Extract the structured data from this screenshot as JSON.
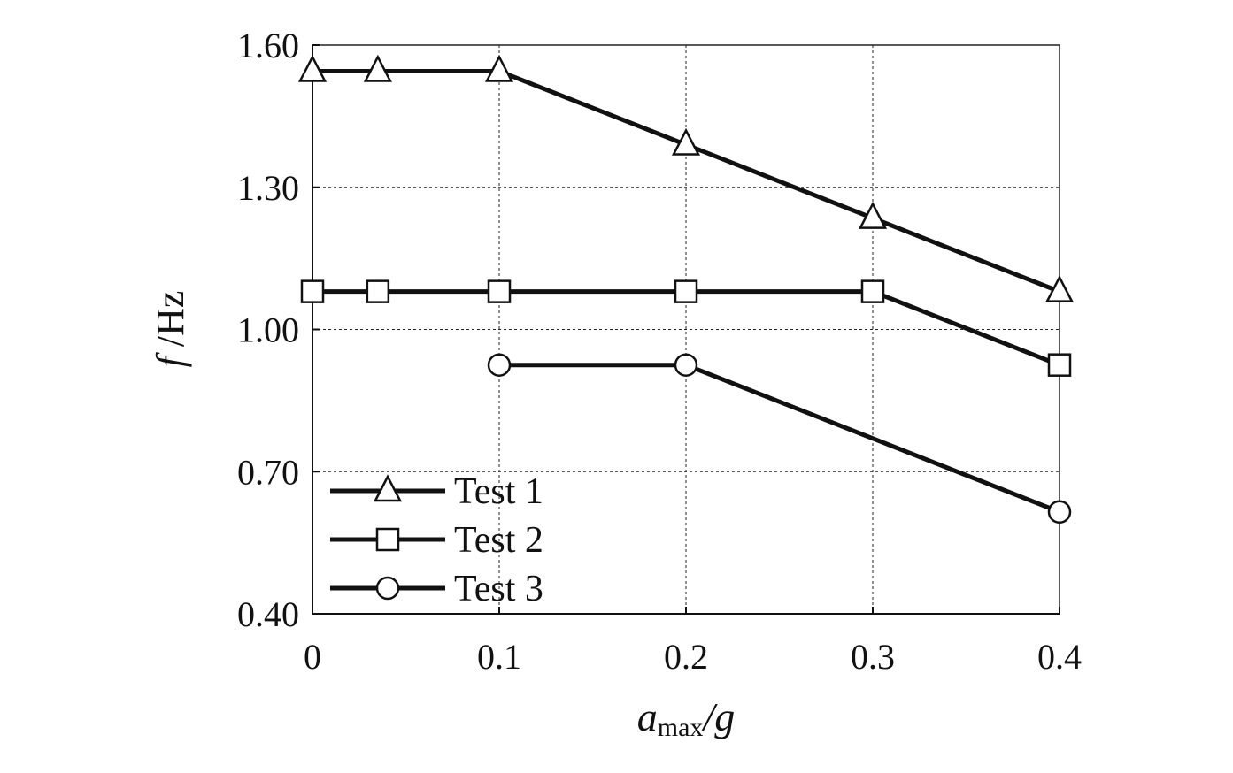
{
  "chart_data": {
    "type": "line",
    "title": "",
    "xlabel": {
      "main": "a",
      "sub": "max",
      "rest": "/g"
    },
    "ylabel": {
      "main": "f",
      "rest": " /Hz"
    },
    "xlim": [
      0,
      0.4
    ],
    "ylim": [
      0.4,
      1.6
    ],
    "x_ticks": [
      0,
      0.1,
      0.2,
      0.3,
      0.4
    ],
    "x_tick_labels": [
      "0",
      "0.1",
      "0.2",
      "0.3",
      "0.4"
    ],
    "y_ticks": [
      0.4,
      0.7,
      1.0,
      1.3,
      1.6
    ],
    "y_tick_labels": [
      "0.40",
      "0.70",
      "1.00",
      "1.30",
      "1.60"
    ],
    "grid": true,
    "legend_position": "bottom-left",
    "series": [
      {
        "name": "Test 1",
        "marker": "triangle",
        "x": [
          0,
          0.035,
          0.1,
          0.2,
          0.3,
          0.4
        ],
        "y": [
          1.545,
          1.545,
          1.545,
          1.39,
          1.235,
          1.08
        ]
      },
      {
        "name": "Test 2",
        "marker": "square",
        "x": [
          0,
          0.035,
          0.1,
          0.2,
          0.3,
          0.4
        ],
        "y": [
          1.08,
          1.08,
          1.08,
          1.08,
          1.08,
          0.925
        ]
      },
      {
        "name": "Test 3",
        "marker": "circle",
        "x": [
          0.1,
          0.2,
          0.4
        ],
        "y": [
          0.925,
          0.925,
          0.615
        ]
      }
    ]
  }
}
